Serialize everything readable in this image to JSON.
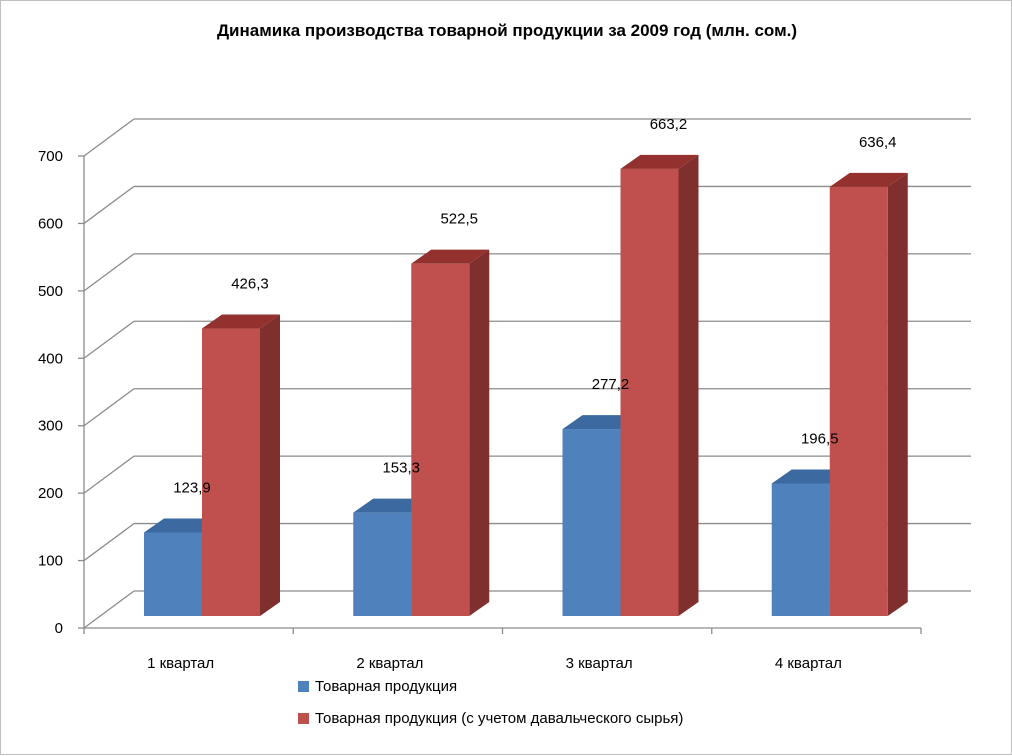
{
  "chart_data": {
    "type": "bar",
    "title": "Динамика производства товарной продукции за 2009 год (млн. сом.)",
    "categories": [
      "1 квартал",
      "2 квартал",
      "3 квартал",
      "4 квартал"
    ],
    "series": [
      {
        "name": "Товарная продукция",
        "values": [
          123.9,
          153.3,
          277.2,
          196.5
        ],
        "labels": [
          "123,9",
          "153,3",
          "277,2",
          "196,5"
        ],
        "color": "#4f81bd"
      },
      {
        "name": "Товарная продукция (с учетом давальческого сырья)",
        "values": [
          426.3,
          522.5,
          663.2,
          636.4
        ],
        "labels": [
          "426,3",
          "522,5",
          "663,2",
          "636,4"
        ],
        "color": "#c0504d"
      }
    ],
    "ylim": [
      0,
      700
    ],
    "yticks": [
      0,
      100,
      200,
      300,
      400,
      500,
      600,
      700
    ],
    "grid": true,
    "legend_position": "bottom",
    "style": "3d-column"
  }
}
